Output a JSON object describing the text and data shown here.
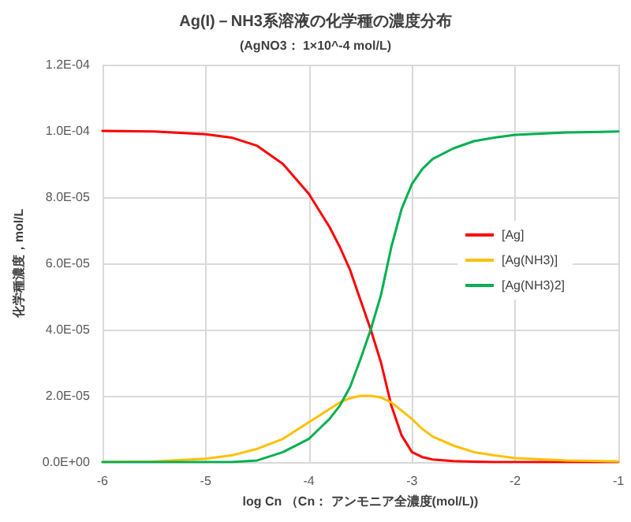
{
  "chart_data": {
    "type": "line",
    "title": "Ag(I)－NH3系溶液の化学種の濃度分布",
    "subtitle": "(AgNO3： 1×10^-4 mol/L)",
    "xlabel": "log Cn （Cn： アンモニア全濃度(mol/L))",
    "ylabel": "化学種濃度，mol/L",
    "x": [
      -6,
      -5.5,
      -5,
      -4.75,
      -4.5,
      -4.25,
      -4,
      -3.9,
      -3.8,
      -3.7,
      -3.6,
      -3.5,
      -3.4,
      -3.3,
      -3.2,
      -3.1,
      -3,
      -2.9,
      -2.8,
      -2.6,
      -2.4,
      -2.2,
      -2,
      -1.5,
      -1
    ],
    "series": [
      {
        "name": "[Ag]",
        "color": "#ff0000",
        "values": [
          0.0001,
          9.98e-05,
          9.9e-05,
          9.8e-05,
          9.55e-05,
          9e-05,
          8.1e-05,
          7.6e-05,
          7.1e-05,
          6.5e-05,
          5.8e-05,
          4.9e-05,
          4e-05,
          3e-05,
          1.7e-05,
          8e-06,
          3e-06,
          1.5e-06,
          8e-07,
          3e-07,
          1e-07,
          0,
          0,
          0,
          0
        ]
      },
      {
        "name": "[Ag(NH3)]",
        "color": "#ffc000",
        "values": [
          0,
          2e-07,
          1e-06,
          2e-06,
          4e-06,
          7e-06,
          1.2e-05,
          1.4e-05,
          1.6e-05,
          1.8e-05,
          1.93e-05,
          2e-05,
          2e-05,
          1.95e-05,
          1.8e-05,
          1.55e-05,
          1.3e-05,
          1e-05,
          7.7e-06,
          5e-06,
          3e-06,
          2e-06,
          1.2e-06,
          5e-07,
          2e-07
        ]
      },
      {
        "name": "[Ag(NH3)2]",
        "color": "#00b050",
        "values": [
          0,
          0,
          0,
          0,
          5e-07,
          3e-06,
          7e-06,
          1e-05,
          1.3e-05,
          1.7e-05,
          2.27e-05,
          3.1e-05,
          4e-05,
          5.05e-05,
          6.5e-05,
          7.65e-05,
          8.4e-05,
          8.85e-05,
          9.15e-05,
          9.47e-05,
          9.69e-05,
          9.8e-05,
          9.88e-05,
          9.95e-05,
          9.98e-05
        ]
      }
    ],
    "xlim": [
      -6,
      -1
    ],
    "xticks": [
      -6,
      -5,
      -4,
      -3,
      -2,
      -1
    ],
    "ylim": [
      0,
      0.00012
    ],
    "yticks": [
      {
        "value": 0,
        "label": "0.0E+00"
      },
      {
        "value": 2e-05,
        "label": "2.0E-05"
      },
      {
        "value": 4e-05,
        "label": "4.0E-05"
      },
      {
        "value": 6e-05,
        "label": "6.0E-05"
      },
      {
        "value": 8e-05,
        "label": "8.0E-05"
      },
      {
        "value": 0.0001,
        "label": "1.0E-04"
      },
      {
        "value": 0.00012,
        "label": "1.2E-04"
      }
    ],
    "grid": true,
    "legend": "right",
    "marker": "none",
    "line_style": "solid"
  }
}
